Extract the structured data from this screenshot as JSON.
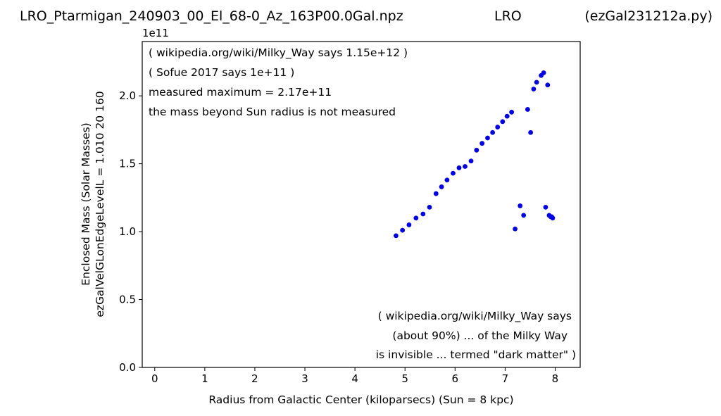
{
  "header": {
    "file_title": "LRO_Ptarmigan_240903_00_El_68-0_Az_163P00.0Gal.npz",
    "center_title": "LRO",
    "script_title": "(ezGal231212a.py)"
  },
  "chart_data": {
    "type": "scatter",
    "xlabel": "Radius from Galactic Center (kiloparsecs)  (Sun = 8 kpc)",
    "ylabel_line1": "Enclosed Mass (Solar Masses)",
    "ylabel_line2": "ezGalVelGLonEdgeLevelL = 1.010  20  160",
    "y_offset_label": "1e11",
    "xlim": [
      -0.25,
      8.5
    ],
    "ylim": [
      0.0,
      2.4
    ],
    "x_ticks": [
      0,
      1,
      2,
      3,
      4,
      5,
      6,
      7,
      8
    ],
    "x_tick_labels": [
      "0",
      "1",
      "2",
      "3",
      "4",
      "5",
      "6",
      "7",
      "8"
    ],
    "y_ticks": [
      0.0,
      0.5,
      1.0,
      1.5,
      2.0
    ],
    "y_tick_labels": [
      "0.0",
      "0.5",
      "1.0",
      "1.5",
      "2.0"
    ],
    "grid": false,
    "marker_color": "#0000ee",
    "annotations_top": [
      "( wikipedia.org/wiki/Milky_Way says 1.15e+12 )",
      "( Sofue 2017 says 1e+11 )",
      "measured maximum = 2.17e+11",
      "the mass beyond Sun radius is not measured"
    ],
    "annotations_bottom": [
      "( wikipedia.org/wiki/Milky_Way says",
      "(about 90%) ... of the Milky Way",
      "is invisible ... termed \"dark matter\" )"
    ],
    "series": [
      {
        "x": [
          4.82,
          4.95,
          5.08,
          5.22,
          5.36,
          5.49,
          5.62,
          5.73,
          5.84,
          5.96,
          6.08,
          6.2,
          6.32,
          6.43,
          6.54,
          6.65,
          6.75,
          6.85,
          6.95,
          7.04,
          7.13,
          7.2,
          7.3,
          7.37,
          7.45,
          7.51,
          7.57,
          7.63,
          7.72,
          7.77,
          7.81,
          7.85,
          7.88,
          7.91,
          7.93,
          7.95
        ],
        "y": [
          0.97,
          1.01,
          1.05,
          1.1,
          1.13,
          1.18,
          1.28,
          1.33,
          1.38,
          1.43,
          1.47,
          1.48,
          1.52,
          1.6,
          1.65,
          1.69,
          1.73,
          1.77,
          1.81,
          1.85,
          1.88,
          1.02,
          1.19,
          1.12,
          1.9,
          1.73,
          2.05,
          2.1,
          2.15,
          2.17,
          1.18,
          2.08,
          1.12,
          1.11,
          1.11,
          1.1
        ]
      }
    ]
  }
}
